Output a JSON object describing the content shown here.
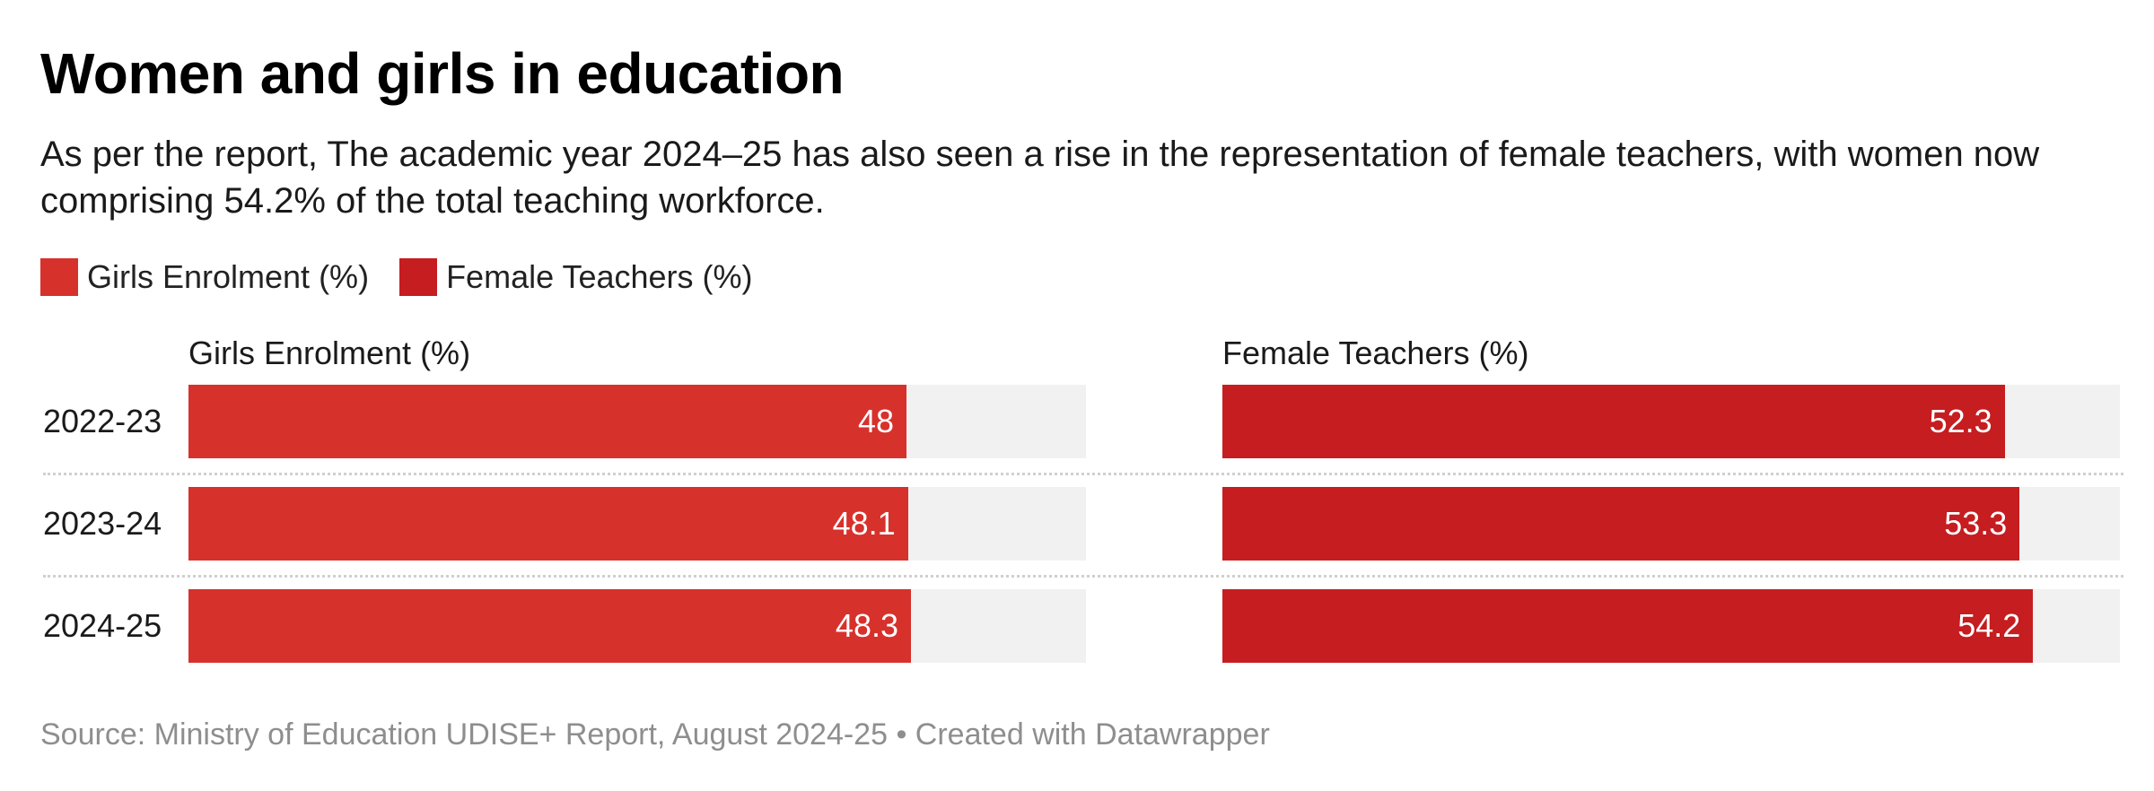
{
  "title": "Women and girls in education",
  "subtitle": "As per the report, The academic year 2024–25 has also seen a rise in the representation of female teachers, with women now comprising 54.2% of the total teaching workforce.",
  "legend": [
    {
      "label": "Girls Enrolment (%)",
      "color": "#d7312c"
    },
    {
      "label": "Female Teachers (%)",
      "color": "#c51d20"
    }
  ],
  "footer": "Source: Ministry of Education UDISE+ Report, August 2024-25 • Created with Datawrapper",
  "chart_data": [
    {
      "type": "bar",
      "title": "Girls Enrolment (%)",
      "categories": [
        "2022-23",
        "2023-24",
        "2024-25"
      ],
      "values": [
        48,
        48.1,
        48.3
      ],
      "value_labels": [
        "48",
        "48.1",
        "48.3"
      ],
      "xlim": [
        0,
        60
      ],
      "color": "#d7312c"
    },
    {
      "type": "bar",
      "title": "Female Teachers (%)",
      "categories": [
        "2022-23",
        "2023-24",
        "2024-25"
      ],
      "values": [
        52.3,
        53.3,
        54.2
      ],
      "value_labels": [
        "52.3",
        "53.3",
        "54.2"
      ],
      "xlim": [
        0,
        60
      ],
      "color": "#c51d20"
    }
  ]
}
